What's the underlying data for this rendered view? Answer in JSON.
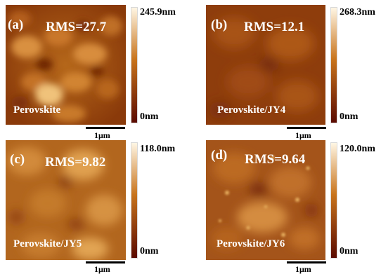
{
  "panels": [
    {
      "tag": "(a)",
      "rms": "RMS=27.7",
      "sample": "Perovskite",
      "max": "245.9nm",
      "min": "0nm",
      "scale": "1μm"
    },
    {
      "tag": "(b)",
      "rms": "RMS=12.1",
      "sample": "Perovskite/JY4",
      "max": "268.3nm",
      "min": "0nm",
      "scale": "1μm"
    },
    {
      "tag": "(c)",
      "rms": "RMS=9.82",
      "sample": "Perovskite/JY5",
      "max": "118.0nm",
      "min": "0nm",
      "scale": "1μm"
    },
    {
      "tag": "(d)",
      "rms": "RMS=9.64",
      "sample": "Perovskite/JY6",
      "max": "120.0nm",
      "min": "0nm",
      "scale": "1μm"
    }
  ],
  "colors": {
    "colormap_low": "#5a0a00",
    "colormap_mid": "#c8741c",
    "colormap_high": "#fff6e4"
  }
}
